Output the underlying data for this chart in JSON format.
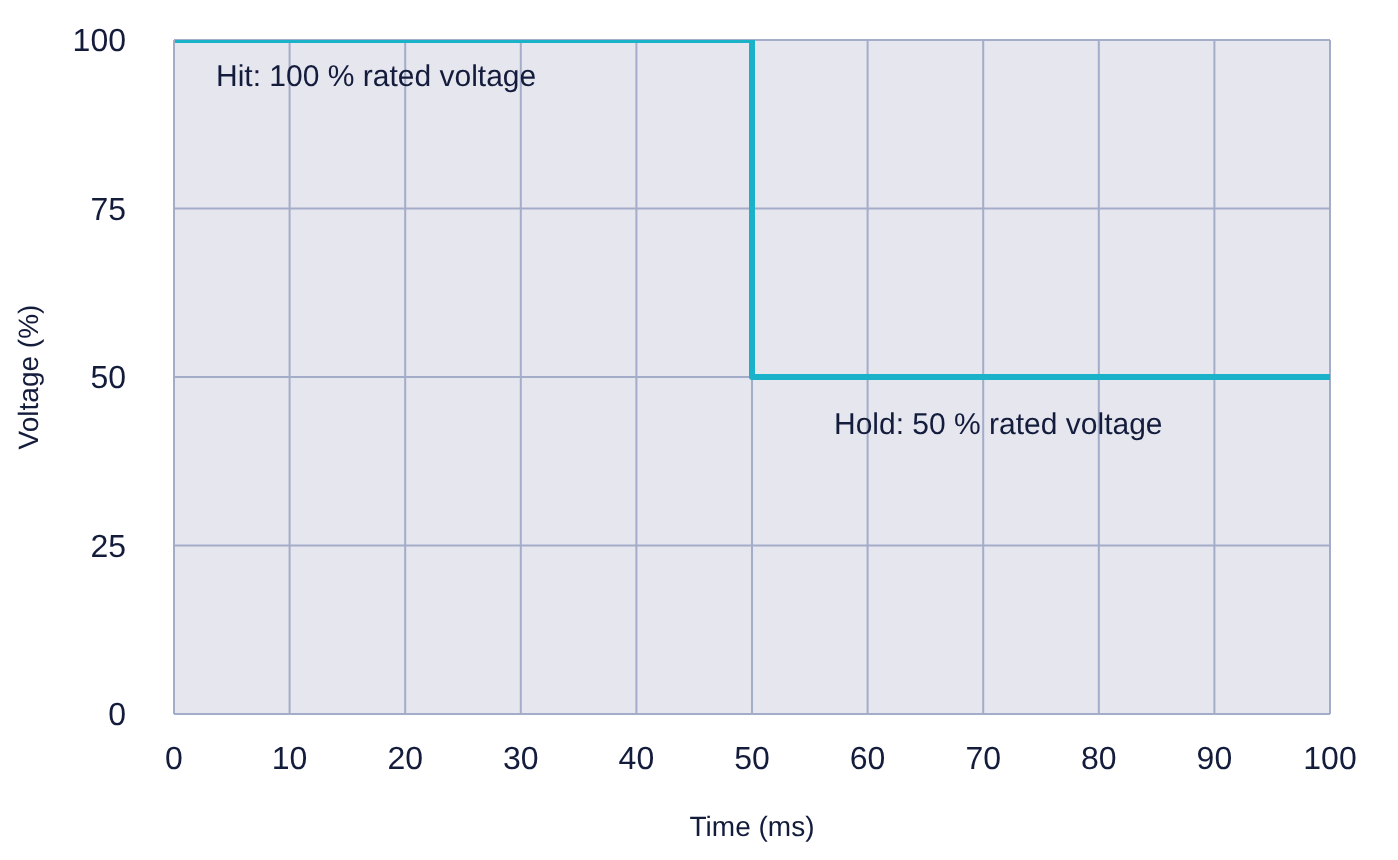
{
  "chart_data": {
    "type": "step",
    "xlabel": "Time (ms)",
    "ylabel": "Voltage (%)",
    "x": [
      0,
      50,
      100
    ],
    "series": [
      {
        "color": "#1ab2c9",
        "values": [
          100,
          50,
          50
        ]
      }
    ],
    "xlim": [
      0,
      100
    ],
    "xticks": [
      0,
      10,
      20,
      30,
      40,
      50,
      60,
      70,
      80,
      90,
      100
    ],
    "ylim": [
      0,
      100
    ],
    "yticks": [
      0,
      25,
      50,
      75,
      100
    ],
    "grid": true,
    "legend": false,
    "marker": "none",
    "line_style": "solid",
    "annotations": [
      "Hit: 100 % rated voltage",
      "Hold: 50 % rated voltage"
    ]
  }
}
